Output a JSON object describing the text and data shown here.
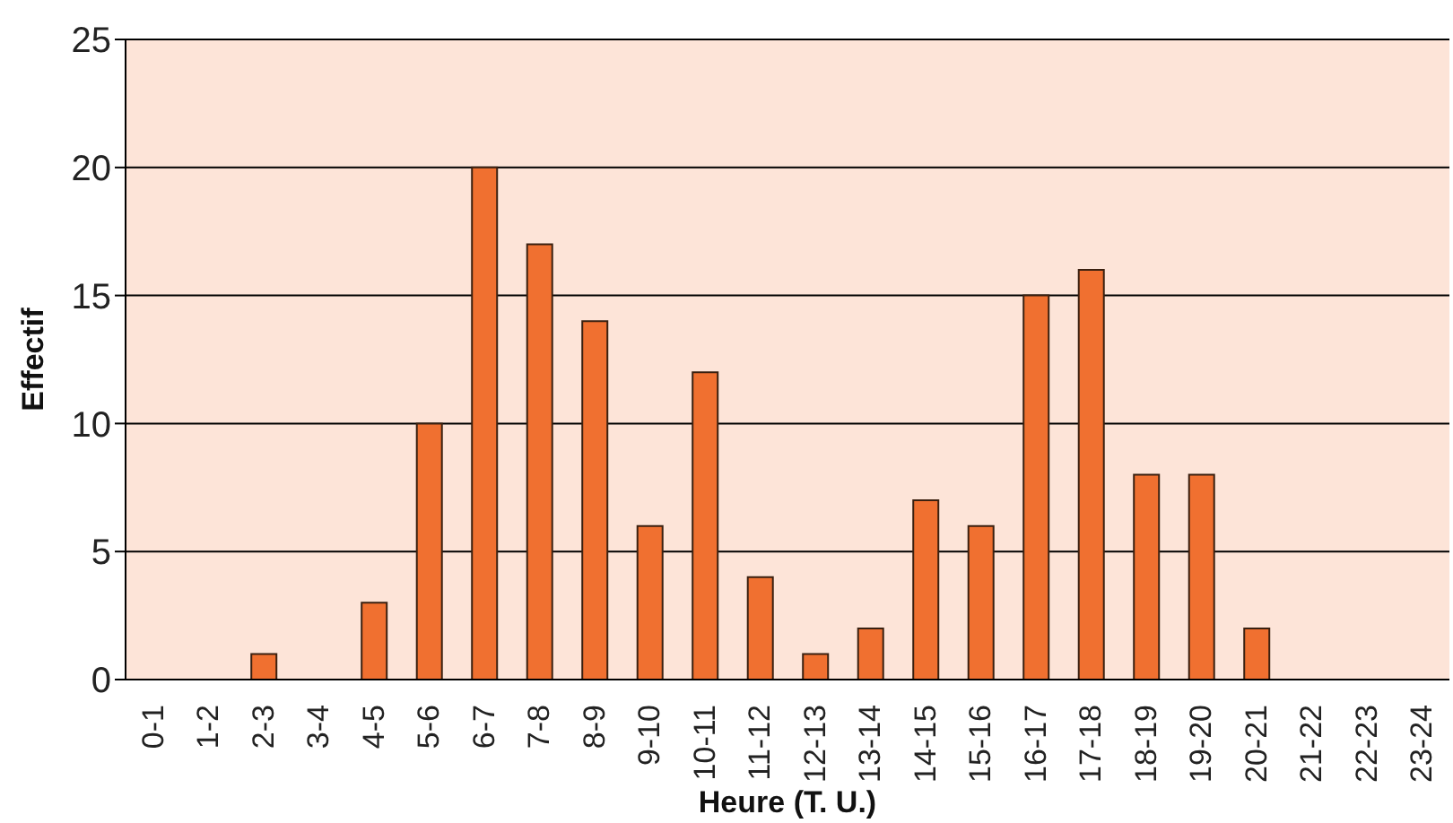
{
  "chart_data": {
    "type": "bar",
    "xlabel": "Heure (T. U.)",
    "ylabel": "Effectif",
    "categories": [
      "0-1",
      "1-2",
      "2-3",
      "3-4",
      "4-5",
      "5-6",
      "6-7",
      "7-8",
      "8-9",
      "9-10",
      "10-11",
      "11-12",
      "12-13",
      "13-14",
      "14-15",
      "15-16",
      "16-17",
      "17-18",
      "18-19",
      "19-20",
      "20-21",
      "21-22",
      "22-23",
      "23-24"
    ],
    "values": [
      0,
      0,
      1,
      0,
      3,
      10,
      20,
      17,
      14,
      6,
      12,
      4,
      1,
      2,
      7,
      6,
      15,
      16,
      8,
      8,
      2,
      0,
      0,
      0
    ],
    "color": "#f07030",
    "ylim": [
      0,
      25
    ],
    "yticks": [
      0,
      5,
      10,
      15,
      20,
      25
    ],
    "grid": "y"
  }
}
